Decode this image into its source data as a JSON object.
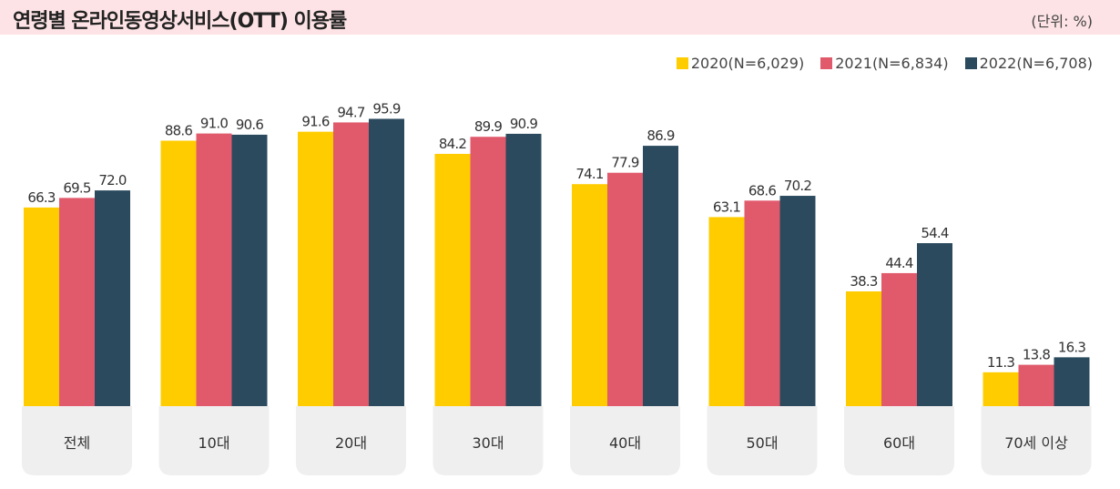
{
  "chart_data": {
    "type": "bar",
    "title": "연령별 온라인동영상서비스(OTT) 이용률",
    "unit_label": "(단위: %)",
    "categories": [
      "전체",
      "10대",
      "20대",
      "30대",
      "40대",
      "50대",
      "60대",
      "70세 이상"
    ],
    "series": [
      {
        "name": "2020(N=6,029)",
        "color": "#ffcc00",
        "values": [
          66.3,
          88.6,
          91.6,
          84.2,
          74.1,
          63.1,
          38.3,
          11.3
        ]
      },
      {
        "name": "2021(N=6,834)",
        "color": "#e05a6c",
        "values": [
          69.5,
          91.0,
          94.7,
          89.9,
          77.9,
          68.6,
          44.4,
          13.8
        ]
      },
      {
        "name": "2022(N=6,708)",
        "color": "#2b4a5e",
        "values": [
          72.0,
          90.6,
          95.9,
          90.9,
          86.9,
          70.2,
          54.4,
          16.3
        ]
      }
    ],
    "ylim": [
      0,
      100
    ],
    "legend": "top-right",
    "grid": false
  }
}
